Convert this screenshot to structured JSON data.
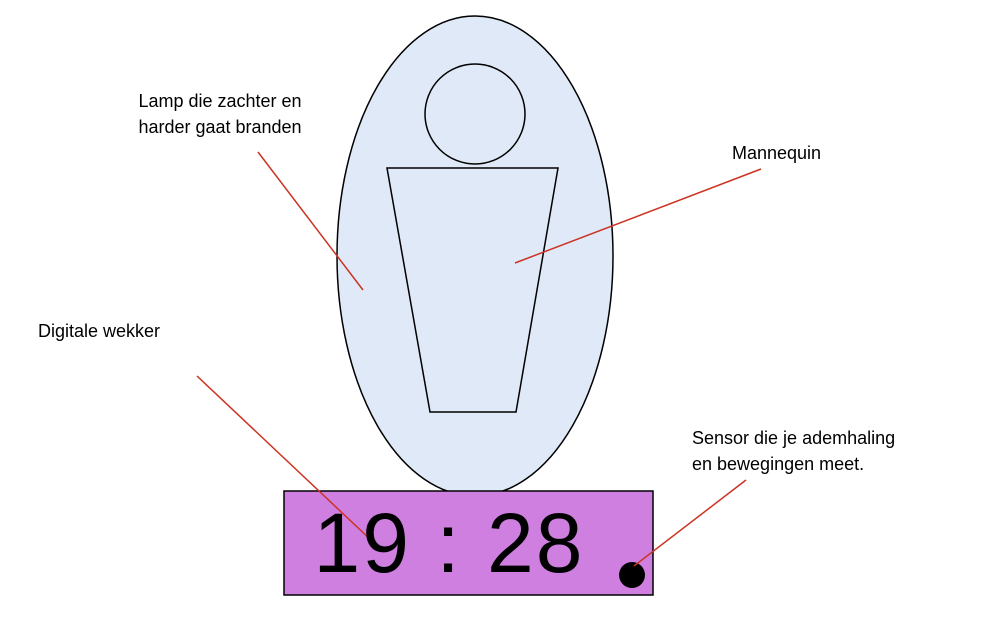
{
  "labels": {
    "lamp": [
      "Lamp die zachter en",
      "harder gaat branden"
    ],
    "mannequin": "Mannequin",
    "clock": "Digitale wekker",
    "sensor": [
      "Sensor die je ademhaling",
      "en bewegingen meet."
    ]
  },
  "clock": {
    "time": "19 : 28"
  },
  "colors": {
    "lamp_fill": "#dfe9f7",
    "clock_fill": "#cf7fe0",
    "leader_line": "#cc3322",
    "outline": "#000000"
  }
}
